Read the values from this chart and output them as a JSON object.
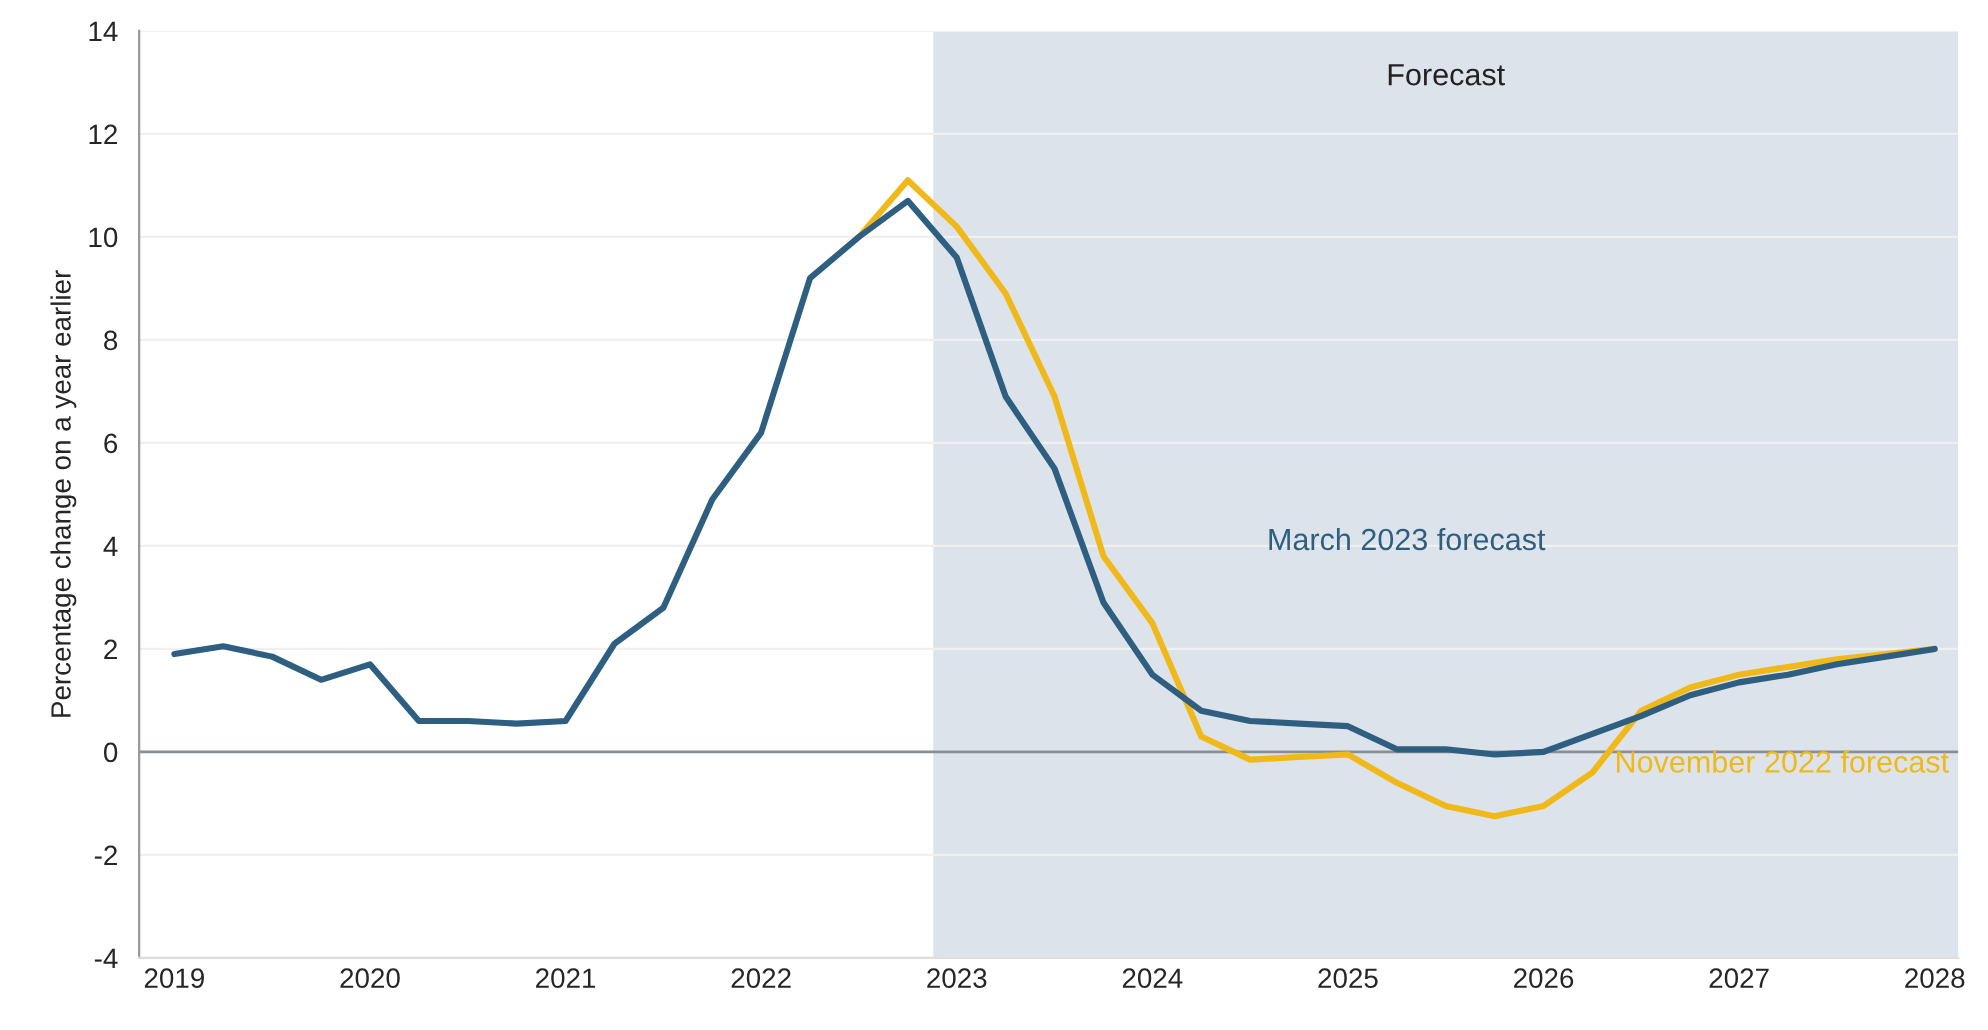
{
  "chart_data": {
    "type": "line",
    "ylabel": "Percentage change on a year earlier",
    "xlim": [
      2018.82,
      2028.12
    ],
    "xticks": [
      2019,
      2020,
      2021,
      2022,
      2023,
      2024,
      2025,
      2026,
      2027,
      2028
    ],
    "ylim": [
      -4,
      14
    ],
    "yticks": [
      -4,
      -2,
      0,
      2,
      4,
      6,
      8,
      10,
      12,
      14
    ],
    "grid": "y",
    "legend": false,
    "line_style": "solid",
    "marker": "none",
    "bands": [
      {
        "axis": "x",
        "from": 2022.88,
        "to": 2028.12,
        "label": "Forecast",
        "color": "#dce3ea"
      }
    ],
    "ref_lines": [
      {
        "axis": "y",
        "value": 0,
        "color": "#8a8f96"
      }
    ],
    "series": [
      {
        "name": "March 2023 forecast",
        "color": "#2f5f80",
        "x": [
          2019,
          2019.25,
          2019.5,
          2019.75,
          2020,
          2020.25,
          2020.5,
          2020.75,
          2021,
          2021.25,
          2021.5,
          2021.75,
          2022,
          2022.25,
          2022.5,
          2022.75,
          2023,
          2023.25,
          2023.5,
          2023.75,
          2024,
          2024.25,
          2024.5,
          2024.75,
          2025,
          2025.25,
          2025.5,
          2025.75,
          2026,
          2026.25,
          2026.5,
          2026.75,
          2027,
          2027.25,
          2027.5,
          2027.75,
          2028
        ],
        "values": [
          1.9,
          2.05,
          1.85,
          1.4,
          1.7,
          0.6,
          0.6,
          0.55,
          0.6,
          2.1,
          2.8,
          4.9,
          6.2,
          9.2,
          10.0,
          10.7,
          9.6,
          6.9,
          5.5,
          2.9,
          1.5,
          0.8,
          0.6,
          0.55,
          0.5,
          0.05,
          0.05,
          -0.05,
          0.0,
          0.35,
          0.7,
          1.1,
          1.35,
          1.5,
          1.7,
          1.85,
          2.0
        ]
      },
      {
        "name": "November 2022 forecast",
        "color": "#f0b919",
        "x": [
          2022.5,
          2022.75,
          2023,
          2023.25,
          2023.5,
          2023.75,
          2024,
          2024.25,
          2024.5,
          2024.75,
          2025,
          2025.25,
          2025.5,
          2025.75,
          2026,
          2026.25,
          2026.5,
          2026.75,
          2027,
          2027.25,
          2027.5,
          2027.75,
          2028
        ],
        "values": [
          10.0,
          11.1,
          10.2,
          8.9,
          6.9,
          3.8,
          2.5,
          0.3,
          -0.15,
          -0.1,
          -0.05,
          -0.6,
          -1.05,
          -1.25,
          -1.05,
          -0.4,
          0.8,
          1.25,
          1.5,
          1.65,
          1.8,
          1.9,
          2.0
        ]
      }
    ]
  }
}
